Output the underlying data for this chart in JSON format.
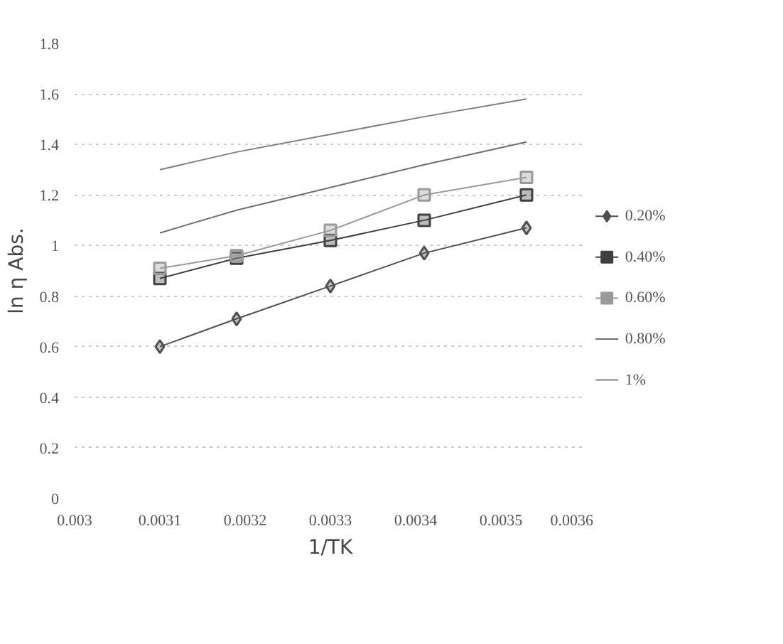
{
  "chart_data": {
    "type": "line",
    "xlabel": "1/TK",
    "ylabel": "ln η Abs.",
    "x": [
      0.0031,
      0.00319,
      0.0033,
      0.00341,
      0.00353
    ],
    "xlim": [
      0.003,
      0.0036
    ],
    "xticks": [
      {
        "value": 0.003,
        "label": "0.003"
      },
      {
        "value": 0.0031,
        "label": "0.0031"
      },
      {
        "value": 0.0032,
        "label": "0.0032"
      },
      {
        "value": 0.0033,
        "label": "0.0033"
      },
      {
        "value": 0.0034,
        "label": "0.0034"
      },
      {
        "value": 0.0035,
        "label": "0.0035"
      },
      {
        "value": 0.0036,
        "label": "0.0036"
      }
    ],
    "ylim": [
      0,
      1.8
    ],
    "yticks": [
      0,
      0.2,
      0.4,
      0.6,
      0.8,
      1,
      1.2,
      1.4,
      1.6,
      1.8
    ],
    "grid": "y",
    "legend": "right",
    "series": [
      {
        "name": "0.20%",
        "color": "#505050",
        "marker": "diamond",
        "values": [
          0.6,
          0.71,
          0.84,
          0.97,
          1.07
        ]
      },
      {
        "name": "0.40%",
        "color": "#404040",
        "marker": "square",
        "values": [
          0.87,
          0.95,
          1.02,
          1.1,
          1.2
        ]
      },
      {
        "name": "0.60%",
        "color": "#9a9a9a",
        "marker": "square",
        "values": [
          0.91,
          0.96,
          1.06,
          1.2,
          1.27
        ]
      },
      {
        "name": "0.80%",
        "color": "#707070",
        "marker": "none",
        "values": [
          1.05,
          1.14,
          1.23,
          1.32,
          1.41
        ]
      },
      {
        "name": "1%",
        "color": "#808080",
        "marker": "none",
        "values": [
          1.3,
          1.37,
          1.44,
          1.51,
          1.58
        ]
      }
    ]
  }
}
